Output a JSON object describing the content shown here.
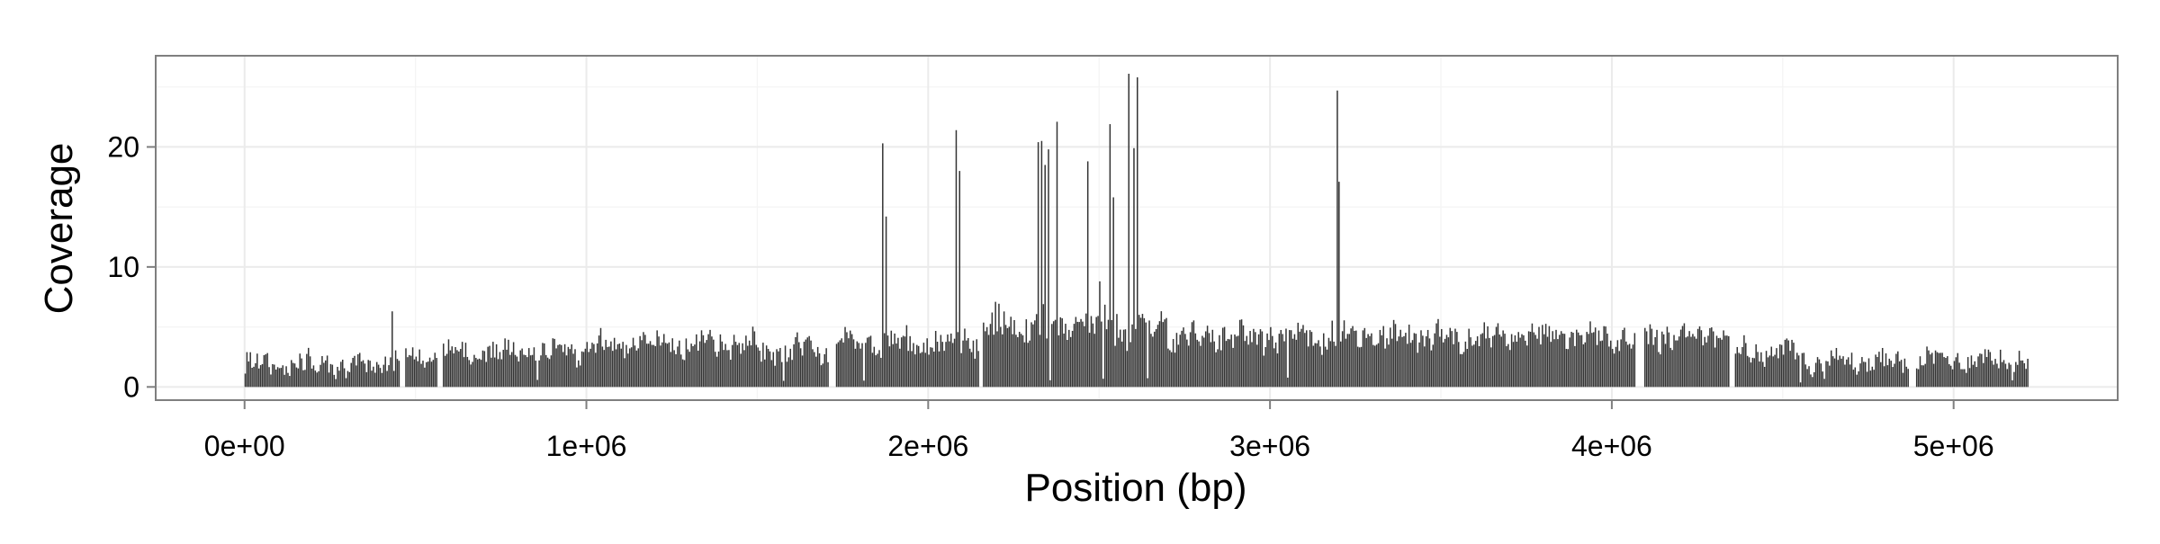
{
  "chart_data": {
    "type": "bar",
    "title": "",
    "xlabel": "Position (bp)",
    "ylabel": "Coverage",
    "xlim": [
      -260000,
      5480000
    ],
    "ylim": [
      -1.1,
      27.6
    ],
    "x_ticks": [
      {
        "value": 0,
        "label": "0e+00"
      },
      {
        "value": 1000000,
        "label": "1e+06"
      },
      {
        "value": 2000000,
        "label": "2e+06"
      },
      {
        "value": 3000000,
        "label": "3e+06"
      },
      {
        "value": 4000000,
        "label": "4e+06"
      },
      {
        "value": 5000000,
        "label": "5e+06"
      }
    ],
    "y_ticks": [
      {
        "value": 0,
        "label": "0"
      },
      {
        "value": 10,
        "label": "10"
      },
      {
        "value": 20,
        "label": "20"
      }
    ],
    "x_minor_grid": [
      500000,
      1500000,
      2500000,
      3500000,
      4500000
    ],
    "y_minor_grid": [
      5,
      15,
      25
    ],
    "grid": true,
    "bar_color": "#333333",
    "panel_border_color": "#7f7f7f",
    "grid_color": "#ebebeb",
    "spikes": [
      {
        "x": 430000,
        "value": 6.3
      },
      {
        "x": 1865000,
        "value": 20.3
      },
      {
        "x": 1875000,
        "value": 14.2
      },
      {
        "x": 2080000,
        "value": 21.4
      },
      {
        "x": 2090000,
        "value": 18.0
      },
      {
        "x": 2320000,
        "value": 20.4
      },
      {
        "x": 2330000,
        "value": 20.5
      },
      {
        "x": 2340000,
        "value": 18.5
      },
      {
        "x": 2350000,
        "value": 19.8
      },
      {
        "x": 2375000,
        "value": 22.1
      },
      {
        "x": 2465000,
        "value": 18.8
      },
      {
        "x": 2500000,
        "value": 8.8
      },
      {
        "x": 2530000,
        "value": 21.9
      },
      {
        "x": 2540000,
        "value": 15.8
      },
      {
        "x": 2585000,
        "value": 26.1
      },
      {
        "x": 2600000,
        "value": 19.9
      },
      {
        "x": 2610000,
        "value": 25.8
      },
      {
        "x": 3195000,
        "value": 24.7
      },
      {
        "x": 3200000,
        "value": 17.1
      }
    ],
    "segments": [
      {
        "x_start": 0,
        "x_end": 440000,
        "baseline": 1.9,
        "amplitude": 1.0
      },
      {
        "x_start": 440000,
        "x_end": 580000,
        "baseline": 2.5,
        "amplitude": 0.8
      },
      {
        "x_start": 580000,
        "x_end": 1000000,
        "baseline": 2.9,
        "amplitude": 1.0
      },
      {
        "x_start": 1000000,
        "x_end": 1500000,
        "baseline": 3.6,
        "amplitude": 1.1
      },
      {
        "x_start": 1500000,
        "x_end": 1750000,
        "baseline": 3.1,
        "amplitude": 1.2
      },
      {
        "x_start": 1750000,
        "x_end": 2150000,
        "baseline": 3.8,
        "amplitude": 1.2
      },
      {
        "x_start": 2150000,
        "x_end": 2700000,
        "baseline": 5.0,
        "amplitude": 1.6
      },
      {
        "x_start": 2700000,
        "x_end": 3500000,
        "baseline": 4.2,
        "amplitude": 1.2
      },
      {
        "x_start": 3500000,
        "x_end": 4080000,
        "baseline": 4.1,
        "amplitude": 1.1
      },
      {
        "x_start": 4080000,
        "x_end": 4350000,
        "baseline": 4.2,
        "amplitude": 1.1
      },
      {
        "x_start": 4350000,
        "x_end": 4550000,
        "baseline": 3.0,
        "amplitude": 1.0
      },
      {
        "x_start": 4550000,
        "x_end": 4900000,
        "baseline": 2.1,
        "amplitude": 0.9
      },
      {
        "x_start": 4900000,
        "x_end": 5220000,
        "baseline": 2.3,
        "amplitude": 0.9
      }
    ],
    "gaps": [
      {
        "x_start": 455000,
        "x_end": 468000
      },
      {
        "x_start": 565000,
        "x_end": 578000
      },
      {
        "x_start": 1710000,
        "x_end": 1730000
      },
      {
        "x_start": 2150000,
        "x_end": 2158000
      },
      {
        "x_start": 4070000,
        "x_end": 4095000
      },
      {
        "x_start": 4345000,
        "x_end": 4360000
      },
      {
        "x_start": 4870000,
        "x_end": 4890000
      }
    ]
  }
}
